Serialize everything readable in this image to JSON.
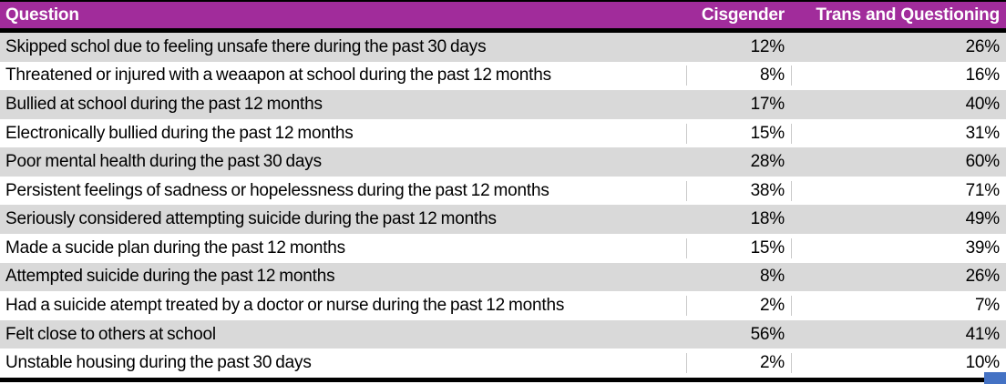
{
  "table": {
    "header": {
      "question": "Question",
      "cisgender": "Cisgender",
      "trans": "Trans and Questioning"
    },
    "rows": [
      {
        "question": "Skipped schol due to feeling unsafe there during the past 30 days",
        "cisgender": "12%",
        "trans": "26%"
      },
      {
        "question": "Threatened or injured with a weaapon at school during the past 12 months",
        "cisgender": "8%",
        "trans": "16%"
      },
      {
        "question": "Bullied at school during the past 12 months",
        "cisgender": "17%",
        "trans": "40%"
      },
      {
        "question": "Electronically bullied during the past 12 months",
        "cisgender": "15%",
        "trans": "31%"
      },
      {
        "question": "Poor mental health during the past 30 days",
        "cisgender": "28%",
        "trans": "60%"
      },
      {
        "question": "Persistent feelings of sadness or hopelessness during the past 12 months",
        "cisgender": "38%",
        "trans": "71%"
      },
      {
        "question": "Seriously considered attempting suicide during the past 12 months",
        "cisgender": "18%",
        "trans": "49%"
      },
      {
        "question": "Made a sucide plan during the past 12 months",
        "cisgender": "15%",
        "trans": "39%"
      },
      {
        "question": "Attempted suicide during the past 12 months",
        "cisgender": "8%",
        "trans": "26%"
      },
      {
        "question": "Had a suicide atempt treated by a doctor or nurse during the past 12 months",
        "cisgender": "2%",
        "trans": "7%"
      },
      {
        "question": "Felt close to others at school",
        "cisgender": "56%",
        "trans": "41%"
      },
      {
        "question": "Unstable housing during the past 30 days",
        "cisgender": "2%",
        "trans": "10%"
      }
    ]
  },
  "colors": {
    "header_bg": "#A12C9B",
    "header_text": "#ffffff",
    "alt_row_bg": "#D9D9D9",
    "row_bg": "#ffffff",
    "border": "#000000",
    "gridline": "#c9c9c9",
    "fill_handle": "#4472C4"
  },
  "chart_data": {
    "type": "table",
    "title": "",
    "columns": [
      "Question",
      "Cisgender",
      "Trans and Questioning"
    ],
    "categories": [
      "Skipped schol due to feeling unsafe there during the past 30 days",
      "Threatened or injured with a weaapon at school during the past 12 months",
      "Bullied at school during the past 12 months",
      "Electronically bullied during the past 12 months",
      "Poor mental health during the past 30 days",
      "Persistent feelings of sadness or hopelessness during the past 12 months",
      "Seriously considered attempting suicide during the past 12 months",
      "Made a sucide plan during the past 12 months",
      "Attempted suicide during the past 12 months",
      "Had a suicide atempt treated by a doctor or nurse during the past 12 months",
      "Felt close to others at school",
      "Unstable housing during the past 30 days"
    ],
    "series": [
      {
        "name": "Cisgender",
        "values": [
          12,
          8,
          17,
          15,
          28,
          38,
          18,
          15,
          8,
          2,
          56,
          2
        ]
      },
      {
        "name": "Trans and Questioning",
        "values": [
          26,
          16,
          40,
          31,
          60,
          71,
          49,
          39,
          26,
          7,
          41,
          10
        ]
      }
    ],
    "value_format": "percent",
    "layout": {
      "alternating_row_shading": true,
      "header_style": "bold white on purple",
      "numeric_alignment": "right"
    }
  }
}
